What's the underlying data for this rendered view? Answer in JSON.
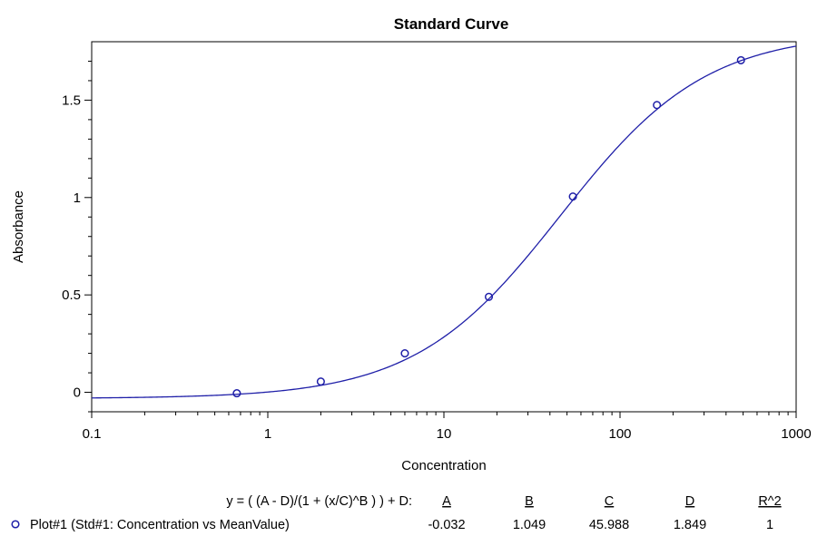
{
  "chart_data": {
    "type": "scatter",
    "title": "Standard Curve",
    "xlabel": "Concentration",
    "ylabel": "Absorbance",
    "xscale": "log",
    "xlim": [
      0.1,
      1000
    ],
    "ylim": [
      -0.1,
      1.8
    ],
    "xticks": [
      0.1,
      1,
      10,
      100,
      1000
    ],
    "xtick_labels": [
      "0.1",
      "1",
      "10",
      "100",
      "1000"
    ],
    "yticks": [
      0,
      0.5,
      1,
      1.5
    ],
    "ytick_labels": [
      "0",
      "0.5",
      "1",
      "1.5"
    ],
    "grid": false,
    "series": [
      {
        "name": "Plot#1 (Std#1: Concentration vs MeanValue)",
        "type": "scatter",
        "color": "#1f1fa8",
        "x": [
          0.667,
          2,
          6,
          18,
          54,
          162,
          486
        ],
        "y": [
          -0.005,
          0.055,
          0.2,
          0.49,
          1.005,
          1.475,
          1.705
        ]
      }
    ],
    "fit": {
      "equation": "y = ( (A - D)/(1 + (x/C)^B ) ) + D:",
      "headers": [
        "A",
        "B",
        "C",
        "D",
        "R^2"
      ],
      "params": {
        "A": -0.032,
        "B": 1.049,
        "C": 45.988,
        "D": 1.849
      },
      "values": [
        "-0.032",
        "1.049",
        "45.988",
        "1.849",
        "1"
      ],
      "color": "#1f1fa8"
    },
    "legend_position": "bottom"
  }
}
